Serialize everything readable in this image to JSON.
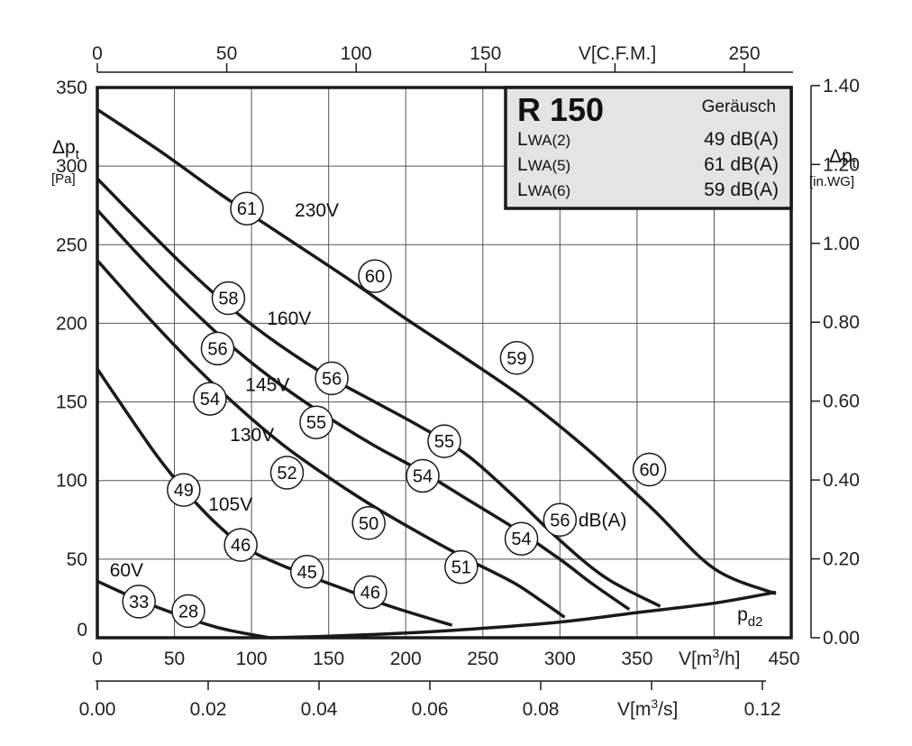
{
  "chart_data": {
    "type": "line",
    "x_primary": {
      "unit_label": "V[m³/h]",
      "lim": [
        0,
        450
      ],
      "ticks": [
        0,
        50,
        100,
        150,
        200,
        250,
        300,
        350,
        400,
        450
      ]
    },
    "x_top": {
      "unit_label": "V[C.F.M.]",
      "ticks": [
        0,
        50,
        100,
        150,
        200,
        250
      ]
    },
    "x_bottom2": {
      "unit_label": "V[m³/s]",
      "ticks": [
        "0.00",
        "0.02",
        "0.04",
        "0.06",
        "0.08",
        "0.10",
        "0.12"
      ]
    },
    "y_left": {
      "label_main": "Δpt",
      "label_unit": "[Pa]",
      "lim": [
        0,
        350
      ],
      "ticks": [
        0,
        50,
        100,
        150,
        200,
        250,
        300,
        350
      ]
    },
    "y_right": {
      "label_main": "Δpt",
      "label_unit": "[in.WG]",
      "ticks": [
        "0.00",
        "0.20",
        "0.40",
        "0.60",
        "0.80",
        "1.00",
        "1.20",
        "1.40"
      ]
    },
    "grid": true,
    "series": [
      {
        "name": "230V",
        "points": [
          [
            0,
            336
          ],
          [
            40,
            310
          ],
          [
            80,
            282
          ],
          [
            120,
            256
          ],
          [
            160,
            230
          ],
          [
            200,
            203
          ],
          [
            240,
            177
          ],
          [
            280,
            150
          ],
          [
            320,
            118
          ],
          [
            360,
            82
          ],
          [
            400,
            44
          ],
          [
            440,
            28
          ]
        ]
      },
      {
        "name": "160V",
        "points": [
          [
            0,
            292
          ],
          [
            30,
            262
          ],
          [
            60,
            233
          ],
          [
            90,
            207
          ],
          [
            120,
            185
          ],
          [
            150,
            166
          ],
          [
            180,
            150
          ],
          [
            210,
            134
          ],
          [
            240,
            116
          ],
          [
            270,
            90
          ],
          [
            300,
            62
          ],
          [
            330,
            38
          ],
          [
            365,
            20
          ]
        ]
      },
      {
        "name": "145V",
        "points": [
          [
            0,
            272
          ],
          [
            30,
            240
          ],
          [
            60,
            210
          ],
          [
            90,
            183
          ],
          [
            120,
            160
          ],
          [
            150,
            140
          ],
          [
            180,
            122
          ],
          [
            210,
            106
          ],
          [
            240,
            88
          ],
          [
            270,
            70
          ],
          [
            300,
            50
          ],
          [
            320,
            35
          ],
          [
            345,
            18
          ]
        ]
      },
      {
        "name": "130V",
        "points": [
          [
            0,
            240
          ],
          [
            30,
            207
          ],
          [
            60,
            176
          ],
          [
            90,
            148
          ],
          [
            120,
            123
          ],
          [
            150,
            102
          ],
          [
            180,
            83
          ],
          [
            210,
            66
          ],
          [
            240,
            50
          ],
          [
            270,
            35
          ],
          [
            290,
            22
          ],
          [
            303,
            13
          ]
        ]
      },
      {
        "name": "105V",
        "points": [
          [
            0,
            171
          ],
          [
            20,
            142
          ],
          [
            40,
            114
          ],
          [
            60,
            90
          ],
          [
            80,
            70
          ],
          [
            100,
            55
          ],
          [
            130,
            42
          ],
          [
            160,
            31
          ],
          [
            190,
            20
          ],
          [
            230,
            8
          ]
        ]
      },
      {
        "name": "60V",
        "points": [
          [
            0,
            36
          ],
          [
            20,
            27
          ],
          [
            40,
            19
          ],
          [
            60,
            12
          ],
          [
            80,
            6
          ],
          [
            100,
            2
          ],
          [
            112,
            0
          ]
        ]
      }
    ],
    "pd2_curve": {
      "name": "pd2",
      "points": [
        [
          112,
          0
        ],
        [
          150,
          1
        ],
        [
          200,
          3
        ],
        [
          250,
          6
        ],
        [
          300,
          10
        ],
        [
          350,
          16
        ],
        [
          400,
          22
        ],
        [
          440,
          29
        ]
      ]
    },
    "noise_markers": [
      {
        "text": "61",
        "x": 97,
        "y": 273
      },
      {
        "text": "60",
        "x": 180,
        "y": 230
      },
      {
        "text": "59",
        "x": 272,
        "y": 178
      },
      {
        "text": "60",
        "x": 358,
        "y": 107
      },
      {
        "text": "58",
        "x": 85,
        "y": 216
      },
      {
        "text": "56",
        "x": 152,
        "y": 165
      },
      {
        "text": "55",
        "x": 225,
        "y": 125
      },
      {
        "text": "56",
        "x": 300,
        "y": 75
      },
      {
        "text": "56",
        "x": 78,
        "y": 184
      },
      {
        "text": "55",
        "x": 142,
        "y": 137
      },
      {
        "text": "54",
        "x": 211,
        "y": 103
      },
      {
        "text": "54",
        "x": 275,
        "y": 63
      },
      {
        "text": "54",
        "x": 73,
        "y": 152
      },
      {
        "text": "52",
        "x": 123,
        "y": 105
      },
      {
        "text": "50",
        "x": 176,
        "y": 73
      },
      {
        "text": "51",
        "x": 236,
        "y": 45
      },
      {
        "text": "49",
        "x": 56,
        "y": 94
      },
      {
        "text": "46",
        "x": 93,
        "y": 59
      },
      {
        "text": "45",
        "x": 136,
        "y": 42
      },
      {
        "text": "46",
        "x": 177,
        "y": 29
      },
      {
        "text": "33",
        "x": 27,
        "y": 23
      },
      {
        "text": "28",
        "x": 59,
        "y": 17
      }
    ],
    "voltage_labels": [
      {
        "text": "230V",
        "x": 128,
        "y": 272
      },
      {
        "text": "160V",
        "x": 110,
        "y": 203
      },
      {
        "text": "145V",
        "x": 96,
        "y": 161
      },
      {
        "text": "130V",
        "x": 86,
        "y": 129
      },
      {
        "text": "105V",
        "x": 72,
        "y": 85
      },
      {
        "text": "60V",
        "x": 8,
        "y": 43
      }
    ],
    "unit_annotation": {
      "text": "dB(A)",
      "x": 312,
      "y": 75
    },
    "pd2_label": {
      "main": "p",
      "sub": "d2",
      "x": 415,
      "y": 12
    },
    "info_box": {
      "title": "R 150",
      "heading": "Geräusch",
      "rows": [
        {
          "label_main": "L",
          "label_sub": "WA(2)",
          "value": "49 dB(A)"
        },
        {
          "label_main": "L",
          "label_sub": "WA(5)",
          "value": "61 dB(A)"
        },
        {
          "label_main": "L",
          "label_sub": "WA(6)",
          "value": "59 dB(A)"
        }
      ]
    },
    "colors": {
      "line": "#1a1a1a",
      "grid": "#555555",
      "box_fill": "#e4e4e4"
    }
  }
}
